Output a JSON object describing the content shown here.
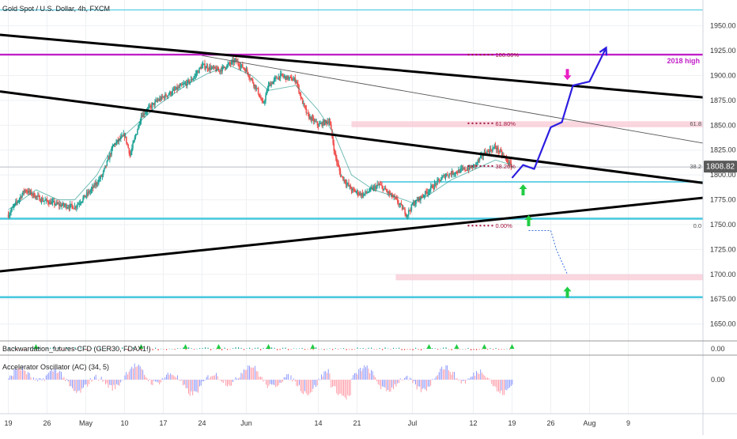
{
  "header": {
    "title": "Gold Spot / U.S. Dollar, 4h, FXCM"
  },
  "colors": {
    "bull": "#26a69a",
    "bear": "#ef5350",
    "trend": "#000000",
    "cyan": "#4cc9e0",
    "magenta": "#c020c8",
    "pink_zone": "#f8c8d4",
    "plan": "#2c1de0",
    "up_arrow": "#22cc44",
    "down_arrow": "#e91ec4",
    "fib_dots": "#a0143c",
    "price_badge": "#5a5a5a",
    "grid": "#eef0f3",
    "axis_text": "#333333"
  },
  "chart_data": [
    {
      "type": "candlestick",
      "title": "Gold Spot / U.S. Dollar, 4h, FXCM",
      "ylim": [
        1633,
        1976
      ],
      "y_ticks": [
        "1950.00",
        "1925.00",
        "1900.00",
        "1875.00",
        "1850.00",
        "1825.00",
        "1800.00",
        "1775.00",
        "1750.00",
        "1725.00",
        "1700.00",
        "1675.00",
        "1650.00"
      ],
      "y_tick_values": [
        1950,
        1925,
        1900,
        1875,
        1850,
        1825,
        1800,
        1775,
        1750,
        1725,
        1700,
        1675,
        1650
      ],
      "x_ticks": [
        "19",
        "26",
        "May",
        "10",
        "17",
        "24",
        "Jun",
        "14",
        "21",
        "Jul",
        "12",
        "19",
        "26",
        "Aug",
        "9"
      ],
      "x_tick_days": [
        0,
        7,
        14,
        21,
        28,
        35,
        43,
        56,
        63,
        73,
        84,
        91,
        98,
        105,
        112
      ],
      "last_price": "1808.82",
      "path": [
        [
          0,
          1760
        ],
        [
          3,
          1785
        ],
        [
          6,
          1775
        ],
        [
          9,
          1770
        ],
        [
          12,
          1768
        ],
        [
          15,
          1785
        ],
        [
          17,
          1800
        ],
        [
          19,
          1830
        ],
        [
          21,
          1840
        ],
        [
          22,
          1820
        ],
        [
          24,
          1860
        ],
        [
          27,
          1875
        ],
        [
          30,
          1885
        ],
        [
          33,
          1895
        ],
        [
          35,
          1910
        ],
        [
          38,
          1905
        ],
        [
          41,
          1915
        ],
        [
          43,
          1905
        ],
        [
          45,
          1885
        ],
        [
          46,
          1870
        ],
        [
          47,
          1890
        ],
        [
          49,
          1900
        ],
        [
          52,
          1895
        ],
        [
          53,
          1875
        ],
        [
          54,
          1860
        ],
        [
          56,
          1850
        ],
        [
          58,
          1855
        ],
        [
          59,
          1820
        ],
        [
          60,
          1800
        ],
        [
          62,
          1785
        ],
        [
          64,
          1780
        ],
        [
          67,
          1790
        ],
        [
          70,
          1775
        ],
        [
          72,
          1760
        ],
        [
          73,
          1770
        ],
        [
          75,
          1780
        ],
        [
          77,
          1790
        ],
        [
          79,
          1800
        ],
        [
          82,
          1805
        ],
        [
          84,
          1808
        ],
        [
          86,
          1822
        ],
        [
          88,
          1828
        ],
        [
          90,
          1815
        ],
        [
          91,
          1808
        ]
      ],
      "ema": [
        [
          0,
          1765
        ],
        [
          5,
          1785
        ],
        [
          9,
          1775
        ],
        [
          12,
          1775
        ],
        [
          16,
          1800
        ],
        [
          19,
          1830
        ],
        [
          23,
          1850
        ],
        [
          27,
          1870
        ],
        [
          32,
          1890
        ],
        [
          36,
          1902
        ],
        [
          40,
          1910
        ],
        [
          44,
          1900
        ],
        [
          47,
          1885
        ],
        [
          52,
          1890
        ],
        [
          56,
          1865
        ],
        [
          59,
          1840
        ],
        [
          62,
          1800
        ],
        [
          66,
          1785
        ],
        [
          70,
          1778
        ],
        [
          73,
          1772
        ],
        [
          76,
          1780
        ],
        [
          80,
          1795
        ],
        [
          84,
          1805
        ],
        [
          88,
          1815
        ],
        [
          91,
          1810
        ]
      ],
      "trendlines": [
        {
          "style": "thick",
          "from": [
            -1.5,
            1941
          ],
          "to": [
            125.5,
            1878
          ]
        },
        {
          "style": "thick",
          "from": [
            -1.5,
            1884
          ],
          "to": [
            125.5,
            1792
          ]
        },
        {
          "style": "thick",
          "from": [
            -1.5,
            1703
          ],
          "to": [
            125.5,
            1777
          ]
        },
        {
          "style": "thin",
          "from": [
            35,
            1920
          ],
          "to": [
            125.5,
            1832
          ]
        }
      ],
      "levels": [
        {
          "value": 1966,
          "style": "cyan-thin"
        },
        {
          "value": 1921,
          "style": "magenta",
          "label": "2018 high"
        },
        {
          "value": 1756,
          "style": "cyan-thick"
        },
        {
          "value": 1677,
          "style": "cyan-thick"
        },
        {
          "value": 1808,
          "style": "gray-thin"
        }
      ],
      "rays": [
        {
          "value": 1793,
          "from_day": 67,
          "style": "cyan-thin"
        }
      ],
      "zones": [
        {
          "from_day": 62,
          "low": 1848,
          "high": 1854
        },
        {
          "from_day": 70,
          "low": 1694,
          "high": 1700
        }
      ],
      "fib": [
        {
          "label": "100.00%",
          "value": 1921,
          "side": ""
        },
        {
          "label": "61.80%",
          "value": 1852,
          "side": "61.8"
        },
        {
          "label": "38.20%",
          "value": 1809,
          "side": "38.2"
        },
        {
          "label": "0.00%",
          "value": 1749,
          "side": "0.0"
        }
      ],
      "plan_path": [
        [
          91,
          1797
        ],
        [
          93,
          1810
        ],
        [
          95,
          1806
        ],
        [
          98,
          1848
        ],
        [
          100,
          1853
        ],
        [
          102,
          1890
        ],
        [
          105,
          1894
        ],
        [
          108,
          1928
        ]
      ],
      "alt_path": [
        [
          94,
          1744
        ],
        [
          98,
          1744
        ],
        [
          99,
          1725
        ],
        [
          101,
          1700
        ]
      ],
      "up_arrows": [
        [
          93,
          1785
        ],
        [
          94,
          1754
        ],
        [
          101,
          1682
        ]
      ],
      "down_arrows": [
        [
          101,
          1901
        ]
      ]
    },
    {
      "type": "bar",
      "name": "Backwardation_futures-CFD (GER30, FDAX1!)",
      "value_label": "0.00",
      "ylim": [
        -1,
        1
      ]
    },
    {
      "type": "bar",
      "name": "Accelerator Oscillator (AC) (34, 5)",
      "value_label": "0.00",
      "ylim": [
        -1,
        1
      ]
    }
  ]
}
